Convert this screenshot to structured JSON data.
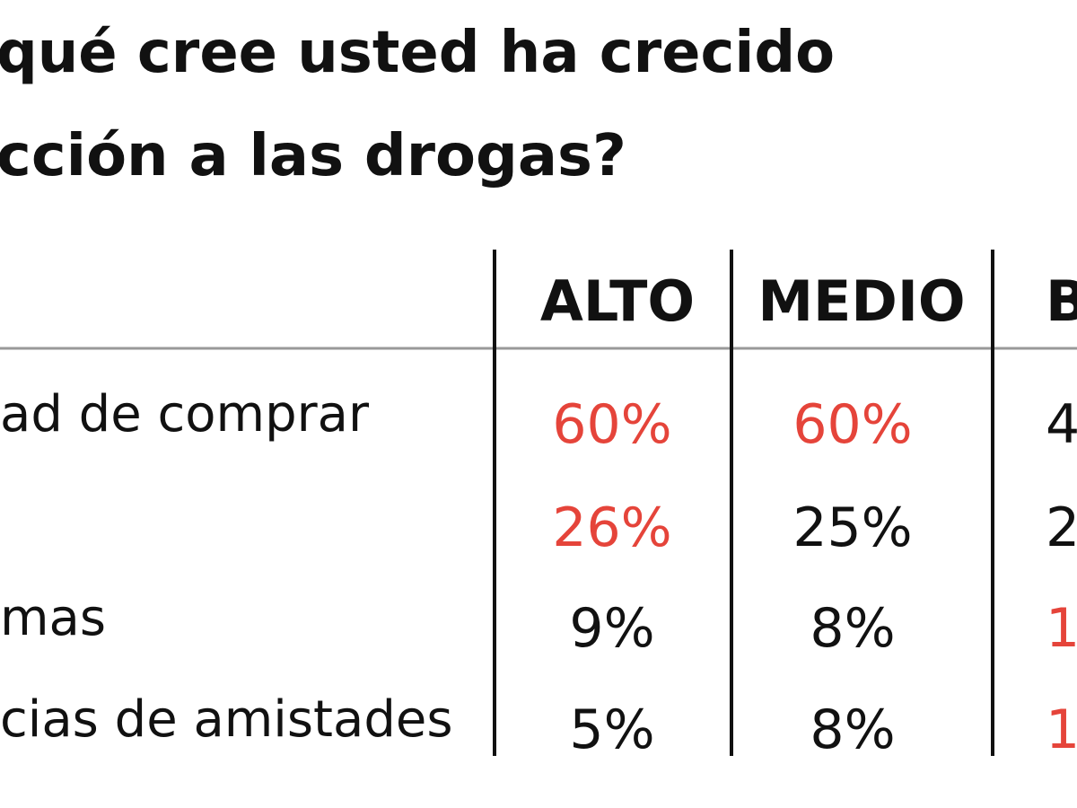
{
  "title": {
    "lines": [
      "qué cree usted ha crecido",
      "cción a las drogas?"
    ]
  },
  "table": {
    "header": [
      "ALTO",
      "MEDIO",
      "B"
    ],
    "rows": [
      {
        "label": "ad de comprar",
        "cells": [
          {
            "text": "60%",
            "color": "#e5443a"
          },
          {
            "text": "60%",
            "color": "#e5443a"
          },
          {
            "text": "4",
            "color": "#111111"
          }
        ]
      },
      {
        "label": "",
        "cells": [
          {
            "text": "26%",
            "color": "#e5443a"
          },
          {
            "text": "25%",
            "color": "#111111"
          },
          {
            "text": "2",
            "color": "#111111"
          }
        ]
      },
      {
        "label": "mas",
        "cells": [
          {
            "text": "9%",
            "color": "#111111"
          },
          {
            "text": "8%",
            "color": "#111111"
          },
          {
            "text": "1",
            "color": "#e5443a"
          }
        ]
      },
      {
        "label": "cias de amistades",
        "cells": [
          {
            "text": "5%",
            "color": "#111111"
          },
          {
            "text": "8%",
            "color": "#111111"
          },
          {
            "text": "1",
            "color": "#e5443a"
          }
        ]
      }
    ]
  }
}
